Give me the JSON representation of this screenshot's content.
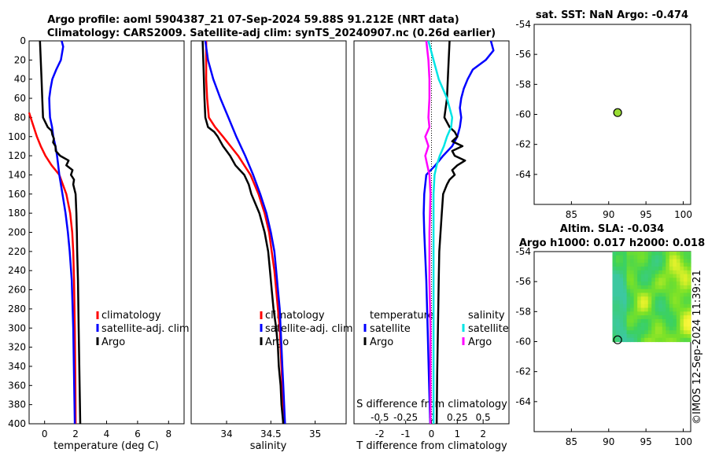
{
  "chart_data": [
    {
      "type": "line",
      "panel": "temperature",
      "title_line1": "Argo profile: aoml 5904387_21 07-Sep-2024 59.88S 91.212E (NRT data)",
      "title_line2": "Climatology: CARS2009. Satellite-adj clim: synTS_20240907.nc (0.26d earlier)",
      "xlabel": "temperature (deg C)",
      "xlim": [
        -1,
        9
      ],
      "ylim": [
        0,
        400
      ],
      "xticks": [
        "0",
        "2",
        "4",
        "6",
        "8"
      ],
      "yticks": [
        "0",
        "20",
        "40",
        "60",
        "80",
        "100",
        "120",
        "140",
        "160",
        "180",
        "200",
        "220",
        "240",
        "260",
        "280",
        "300",
        "320",
        "340",
        "360",
        "380",
        "400"
      ],
      "legend": [
        "climatology",
        "satellite-adj. clim",
        "Argo"
      ],
      "series": [
        {
          "name": "climatology",
          "color": "#ff0000",
          "depth": [
            75,
            85,
            100,
            110,
            120,
            130,
            140,
            160,
            180,
            200,
            220,
            250,
            300,
            350,
            400
          ],
          "values": [
            -1,
            -0.8,
            -0.5,
            -0.25,
            0.05,
            0.45,
            0.95,
            1.4,
            1.65,
            1.78,
            1.85,
            1.9,
            1.95,
            1.98,
            2.0
          ]
        },
        {
          "name": "satellite-adj. clim",
          "color": "#0000ff",
          "depth": [
            0,
            6,
            20,
            30,
            40,
            50,
            60,
            70,
            80,
            90,
            100,
            110,
            120,
            130,
            140,
            160,
            180,
            200,
            220,
            250,
            300,
            350,
            400
          ],
          "values": [
            1.1,
            1.2,
            1.05,
            0.75,
            0.5,
            0.38,
            0.3,
            0.32,
            0.35,
            0.48,
            0.56,
            0.7,
            0.8,
            0.88,
            0.95,
            1.15,
            1.35,
            1.5,
            1.62,
            1.75,
            1.85,
            1.9,
            1.95
          ]
        },
        {
          "name": "Argo",
          "color": "#000000",
          "depth": [
            0,
            20,
            40,
            60,
            80,
            90,
            94,
            98,
            102,
            106,
            110,
            115,
            120,
            125,
            130,
            135,
            140,
            145,
            150,
            160,
            180,
            200,
            220,
            250,
            300,
            350,
            400
          ],
          "values": [
            -0.3,
            -0.25,
            -0.2,
            -0.15,
            -0.1,
            0.2,
            0.45,
            0.5,
            0.6,
            0.55,
            0.7,
            0.72,
            1.0,
            1.55,
            1.4,
            1.8,
            1.7,
            1.9,
            1.85,
            2.0,
            2.05,
            2.08,
            2.1,
            2.15,
            2.2,
            2.25,
            2.3
          ]
        }
      ]
    },
    {
      "type": "line",
      "panel": "salinity",
      "xlabel": "salinity",
      "xlim": [
        33.6,
        35.35
      ],
      "ylim": [
        0,
        400
      ],
      "xticks": [
        "34",
        "34.5",
        "35"
      ],
      "legend": [
        "climatology",
        "satellite-adj. clim",
        "Argo"
      ],
      "series": [
        {
          "name": "climatology",
          "color": "#ff0000",
          "depth": [
            0,
            40,
            60,
            80,
            90,
            100,
            120,
            140,
            160,
            180,
            200,
            220,
            240,
            260,
            280,
            300,
            320,
            340,
            360,
            380,
            400
          ],
          "values": [
            33.77,
            33.77,
            33.78,
            33.8,
            33.87,
            33.96,
            34.13,
            34.27,
            34.36,
            34.43,
            34.48,
            34.51,
            34.54,
            34.56,
            34.58,
            34.6,
            34.61,
            34.62,
            34.63,
            34.63,
            34.64
          ]
        },
        {
          "name": "satellite-adj. clim",
          "color": "#0000ff",
          "depth": [
            0,
            20,
            40,
            60,
            80,
            100,
            120,
            140,
            160,
            180,
            200,
            220,
            240,
            260,
            280,
            300,
            320,
            340,
            360,
            380,
            400
          ],
          "values": [
            33.76,
            33.79,
            33.85,
            33.93,
            34.02,
            34.11,
            34.21,
            34.3,
            34.38,
            34.45,
            34.5,
            34.54,
            34.56,
            34.58,
            34.6,
            34.61,
            34.62,
            34.63,
            34.64,
            34.65,
            34.66
          ]
        },
        {
          "name": "Argo",
          "color": "#000000",
          "depth": [
            0,
            30,
            60,
            80,
            90,
            95,
            100,
            105,
            110,
            120,
            130,
            140,
            150,
            160,
            180,
            200,
            220,
            240,
            260,
            280,
            300,
            320,
            340,
            360,
            380,
            400
          ],
          "values": [
            33.73,
            33.74,
            33.75,
            33.76,
            33.79,
            33.86,
            33.9,
            33.93,
            33.96,
            34.04,
            34.1,
            34.2,
            34.25,
            34.28,
            34.37,
            34.43,
            34.47,
            34.49,
            34.51,
            34.53,
            34.56,
            34.58,
            34.59,
            34.61,
            34.62,
            34.64
          ]
        }
      ]
    },
    {
      "type": "line",
      "panel": "difference",
      "xlabel": "T difference from climatology",
      "xlabel_top": "S difference from climatology",
      "xlim_T": [
        -3,
        3
      ],
      "xlim_S": [
        -0.75,
        0.75
      ],
      "ylim": [
        0,
        400
      ],
      "xticks_T": [
        "-2",
        "-1",
        "0",
        "1",
        "2"
      ],
      "xticks_S": [
        "-0.5",
        "-0.25",
        "0",
        "0.25",
        "0.5"
      ],
      "legend_temperature_title": "temperature",
      "legend_salinity_title": "salinity",
      "legend_temperature": [
        "satellite",
        "Argo"
      ],
      "legend_salinity": [
        "satellite",
        "Argo"
      ],
      "series": [
        {
          "name": "T satellite",
          "color": "#0000ff",
          "axis": "T",
          "depth": [
            0,
            10,
            20,
            30,
            40,
            50,
            60,
            70,
            80,
            90,
            100,
            110,
            120,
            130,
            140,
            160,
            180,
            200,
            250,
            300,
            350,
            400
          ],
          "values": [
            2.3,
            2.4,
            2.1,
            1.6,
            1.4,
            1.25,
            1.15,
            1.1,
            1.15,
            1.1,
            1.0,
            0.8,
            0.45,
            0.15,
            -0.2,
            -0.28,
            -0.3,
            -0.28,
            -0.2,
            -0.15,
            -0.1,
            -0.05
          ]
        },
        {
          "name": "T Argo",
          "color": "#000000",
          "axis": "T",
          "depth": [
            0,
            30,
            60,
            80,
            90,
            95,
            100,
            105,
            110,
            115,
            120,
            125,
            130,
            135,
            140,
            145,
            150,
            160,
            180,
            200,
            220,
            250,
            300,
            350,
            400
          ],
          "values": [
            0.7,
            0.65,
            0.6,
            0.5,
            0.7,
            0.9,
            1.0,
            0.8,
            1.2,
            0.8,
            0.9,
            1.3,
            1.0,
            0.8,
            0.9,
            0.7,
            0.6,
            0.45,
            0.4,
            0.35,
            0.3,
            0.28,
            0.25,
            0.22,
            0.2
          ]
        },
        {
          "name": "S satellite",
          "color": "#00e5e5",
          "axis": "S",
          "depth": [
            0,
            20,
            40,
            60,
            80,
            90,
            100,
            110,
            120,
            130,
            140,
            160,
            180,
            200,
            250,
            300,
            350,
            400
          ],
          "values": [
            -0.03,
            0.02,
            0.07,
            0.15,
            0.2,
            0.19,
            0.15,
            0.12,
            0.08,
            0.05,
            0.03,
            0.02,
            0.02,
            0.02,
            0.02,
            0.02,
            0.02,
            0.02
          ]
        },
        {
          "name": "S Argo",
          "color": "#ff00ff",
          "axis": "S",
          "depth": [
            0,
            20,
            40,
            60,
            80,
            90,
            100,
            110,
            120,
            130,
            140,
            160,
            200,
            250,
            300,
            350,
            400
          ],
          "values": [
            -0.05,
            -0.03,
            -0.02,
            -0.02,
            -0.03,
            -0.02,
            -0.06,
            -0.03,
            -0.06,
            -0.04,
            -0.02,
            -0.01,
            -0.02,
            -0.02,
            -0.01,
            -0.01,
            -0.01
          ]
        }
      ]
    },
    {
      "type": "scatter",
      "panel": "sst_map",
      "title": "sat. SST: NaN Argo: -0.474",
      "xlim": [
        80,
        101
      ],
      "ylim": [
        -66,
        -54
      ],
      "xticks": [
        "85",
        "90",
        "95",
        "100"
      ],
      "yticks": [
        "-54",
        "-56",
        "-58",
        "-60",
        "-62",
        "-64"
      ],
      "point": {
        "x": 91.2,
        "y": -59.88,
        "color": "#99dd33"
      }
    },
    {
      "type": "heatmap",
      "panel": "sla_map",
      "title_line1": "Altim. SLA: -0.034",
      "title_line2": "Argo h1000: 0.017 h2000: 0.018",
      "xlim": [
        80,
        101
      ],
      "ylim": [
        -66,
        -54
      ],
      "xticks": [
        "85",
        "90",
        "95",
        "100"
      ],
      "yticks": [
        "-54",
        "-56",
        "-58",
        "-60",
        "-62",
        "-64"
      ],
      "field_extent": {
        "lon": [
          90.5,
          101
        ],
        "lat": [
          -60,
          -54
        ]
      },
      "point": {
        "x": 91.2,
        "y": -59.88
      }
    }
  ],
  "watermark": "©IMOS 12-Sep-2024 11:39:21"
}
